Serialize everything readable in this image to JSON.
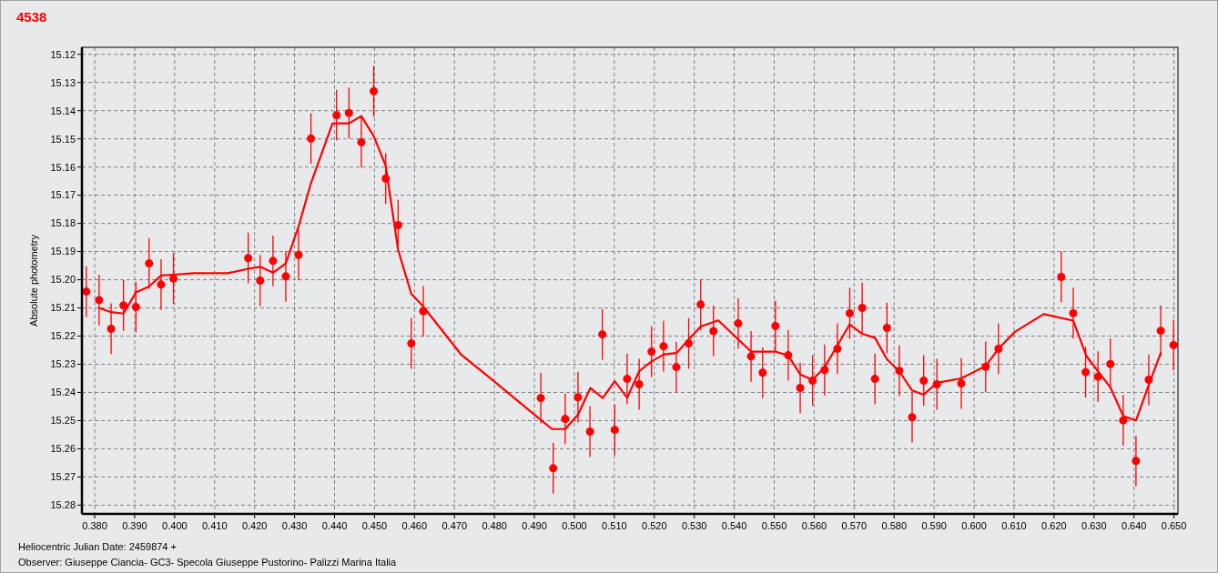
{
  "chart_data": {
    "type": "scatter",
    "title": "4538",
    "ylabel": "Absolute photometry",
    "xlabel": "Heliocentric Julian Date: 2459874 +",
    "annotations": [
      "Observer: Giuseppe Ciancia- GC3- Specola Giuseppe Pustorino- Palizzi Marina Italia"
    ],
    "xlim": [
      0.3768,
      0.651
    ],
    "ylim": [
      15.2831,
      15.1175
    ],
    "xticks": [
      {
        "value": 0.38,
        "label": "0.380"
      },
      {
        "value": 0.39,
        "label": "0.390"
      },
      {
        "value": 0.4,
        "label": "0.400"
      },
      {
        "value": 0.41,
        "label": "0.410"
      },
      {
        "value": 0.42,
        "label": "0.420"
      },
      {
        "value": 0.43,
        "label": "0.430"
      },
      {
        "value": 0.44,
        "label": "0.440"
      },
      {
        "value": 0.45,
        "label": "0.450"
      },
      {
        "value": 0.46,
        "label": "0.460"
      },
      {
        "value": 0.47,
        "label": "0.470"
      },
      {
        "value": 0.48,
        "label": "0.480"
      },
      {
        "value": 0.49,
        "label": "0.490"
      },
      {
        "value": 0.5,
        "label": "0.500"
      },
      {
        "value": 0.51,
        "label": "0.510"
      },
      {
        "value": 0.52,
        "label": "0.520"
      },
      {
        "value": 0.53,
        "label": "0.530"
      },
      {
        "value": 0.54,
        "label": "0.540"
      },
      {
        "value": 0.55,
        "label": "0.550"
      },
      {
        "value": 0.56,
        "label": "0.560"
      },
      {
        "value": 0.57,
        "label": "0.570"
      },
      {
        "value": 0.58,
        "label": "0.580"
      },
      {
        "value": 0.59,
        "label": "0.590"
      },
      {
        "value": 0.6,
        "label": "0.600"
      },
      {
        "value": 0.61,
        "label": "0.610"
      },
      {
        "value": 0.62,
        "label": "0.620"
      },
      {
        "value": 0.63,
        "label": "0.630"
      },
      {
        "value": 0.64,
        "label": "0.640"
      },
      {
        "value": 0.65,
        "label": "0.650"
      }
    ],
    "yticks": [
      15.12,
      15.13,
      15.14,
      15.15,
      15.16,
      15.17,
      15.18,
      15.19,
      {
        "value": 15.2,
        "label": "15.20"
      },
      15.21,
      15.22,
      15.23,
      15.24,
      15.25,
      15.26,
      15.27,
      15.28
    ],
    "grid": true,
    "series": [
      {
        "color": "#ff0000",
        "marker": "circle",
        "x": [
          0.3779,
          0.3811,
          0.3841,
          0.3872,
          0.3903,
          0.3936,
          0.3966,
          0.3997,
          0.4184,
          0.4214,
          0.4246,
          0.4278,
          0.431,
          0.4341,
          0.4405,
          0.4436,
          0.4467,
          0.4498,
          0.4528,
          0.4559,
          0.4592,
          0.4622,
          0.4916,
          0.4947,
          0.4977,
          0.5009,
          0.5039,
          0.507,
          0.5101,
          0.5132,
          0.5162,
          0.5193,
          0.5223,
          0.5255,
          0.5286,
          0.5316,
          0.5348,
          0.541,
          0.5442,
          0.5471,
          0.5503,
          0.5535,
          0.5565,
          0.5596,
          0.5626,
          0.5658,
          0.5689,
          0.572,
          0.5752,
          0.5782,
          0.5813,
          0.5845,
          0.5874,
          0.5907,
          0.5968,
          0.6029,
          0.6061,
          0.6218,
          0.6248,
          0.6279,
          0.631,
          0.6341,
          0.6373,
          0.6405,
          0.6437,
          0.6467,
          0.6499
        ],
        "values": [
          15.2042,
          15.2072,
          15.2174,
          15.2091,
          15.2097,
          15.1942,
          15.2017,
          15.1996,
          15.1923,
          15.2003,
          15.1933,
          15.1988,
          15.1912,
          15.1499,
          15.1416,
          15.1408,
          15.1512,
          15.1331,
          15.1641,
          15.1806,
          15.2226,
          15.2112,
          15.242,
          15.2669,
          15.2494,
          15.2417,
          15.2539,
          15.2194,
          15.2533,
          15.2352,
          15.2371,
          15.2255,
          15.2236,
          15.231,
          15.2226,
          15.2088,
          15.2182,
          15.2155,
          15.2272,
          15.233,
          15.2164,
          15.2268,
          15.2384,
          15.2358,
          15.232,
          15.2245,
          15.2119,
          15.21,
          15.2352,
          15.2171,
          15.2323,
          15.2488,
          15.2358,
          15.2371,
          15.2368,
          15.2309,
          15.2245,
          15.199,
          15.2119,
          15.2328,
          15.2344,
          15.2299,
          15.2499,
          15.2643,
          15.2355,
          15.2181,
          15.2232
        ],
        "errors": [
          0.009,
          0.009,
          0.009,
          0.009,
          0.009,
          0.009,
          0.009,
          0.009,
          0.009,
          0.009,
          0.009,
          0.009,
          0.009,
          0.009,
          0.009,
          0.009,
          0.009,
          0.009,
          0.009,
          0.009,
          0.009,
          0.009,
          0.009,
          0.009,
          0.009,
          0.009,
          0.009,
          0.009,
          0.009,
          0.009,
          0.009,
          0.009,
          0.009,
          0.009,
          0.009,
          0.009,
          0.009,
          0.009,
          0.009,
          0.009,
          0.009,
          0.009,
          0.009,
          0.009,
          0.009,
          0.009,
          0.009,
          0.009,
          0.009,
          0.009,
          0.009,
          0.009,
          0.009,
          0.009,
          0.009,
          0.009,
          0.009,
          0.009,
          0.009,
          0.009,
          0.009,
          0.009,
          0.009,
          0.009,
          0.009,
          0.009,
          0.009
        ]
      },
      {
        "type": "line",
        "color": "#ff0000",
        "line_style": "solid",
        "x": [
          0.3811,
          0.3841,
          0.3872,
          0.3903,
          0.3936,
          0.3966,
          0.3997,
          0.4048,
          0.4132,
          0.4184,
          0.4214,
          0.4246,
          0.4278,
          0.431,
          0.4341,
          0.4395,
          0.4436,
          0.4467,
          0.4498,
          0.4528,
          0.4559,
          0.4592,
          0.4622,
          0.4717,
          0.4792,
          0.4916,
          0.4944,
          0.4977,
          0.5009,
          0.504,
          0.5071,
          0.5101,
          0.5132,
          0.5162,
          0.5193,
          0.5224,
          0.5256,
          0.5286,
          0.5316,
          0.536,
          0.5442,
          0.5502,
          0.5535,
          0.5565,
          0.5596,
          0.5626,
          0.5658,
          0.5689,
          0.572,
          0.5752,
          0.5782,
          0.5813,
          0.5845,
          0.5874,
          0.5907,
          0.5968,
          0.6029,
          0.6061,
          0.6102,
          0.6174,
          0.6248,
          0.6281,
          0.631,
          0.6341,
          0.6373,
          0.6405,
          0.6437,
          0.6467
        ],
        "values": [
          15.21,
          15.2115,
          15.212,
          15.2045,
          15.2024,
          15.1985,
          15.1982,
          15.1977,
          15.1977,
          15.1961,
          15.1954,
          15.1975,
          15.1942,
          15.1811,
          15.1657,
          15.1445,
          15.1445,
          15.1419,
          15.149,
          15.1596,
          15.1894,
          15.205,
          15.2095,
          15.2266,
          15.2352,
          15.2497,
          15.253,
          15.253,
          15.2479,
          15.2384,
          15.242,
          15.236,
          15.2419,
          15.2325,
          15.229,
          15.2265,
          15.226,
          15.2212,
          15.2166,
          15.2144,
          15.2255,
          15.2255,
          15.2269,
          15.2336,
          15.2355,
          15.2311,
          15.2233,
          15.2158,
          15.2192,
          15.2206,
          15.2282,
          15.2325,
          15.2393,
          15.2408,
          15.2366,
          15.235,
          15.2306,
          15.2245,
          15.2185,
          15.2122,
          15.2145,
          15.2271,
          15.2325,
          15.2382,
          15.2483,
          15.25,
          15.2373,
          15.226
        ]
      }
    ]
  }
}
